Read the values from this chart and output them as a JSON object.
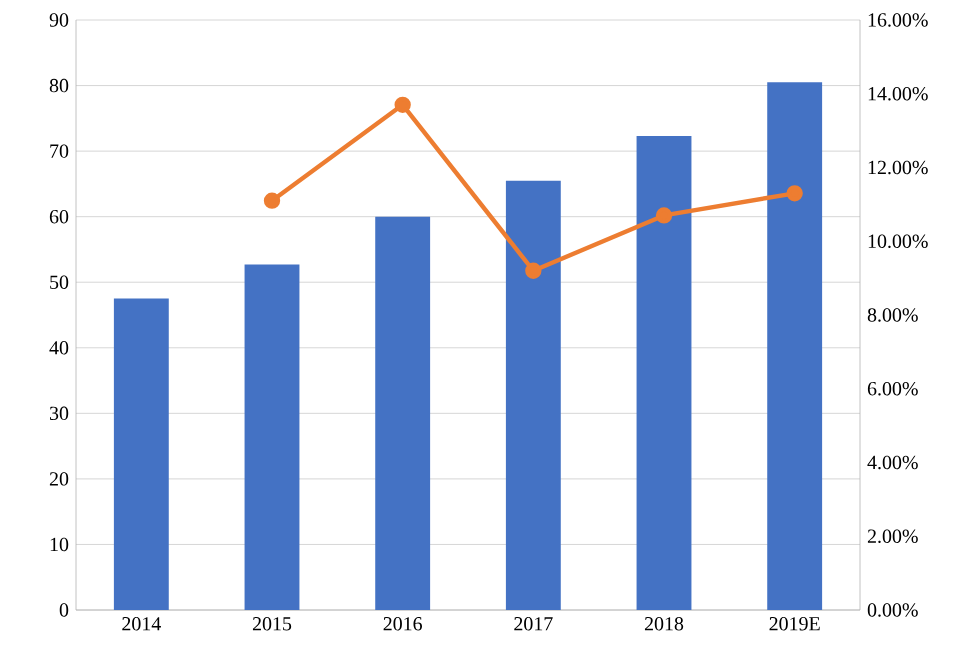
{
  "chart_data": {
    "type": "bar",
    "categories": [
      "2014",
      "2015",
      "2016",
      "2017",
      "2018",
      "2019E"
    ],
    "series": [
      {
        "color": "#4472c4",
        "values": [
          47.5,
          52.7,
          60,
          65.5,
          72.3,
          80.5
        ]
      },
      {
        "type": "line",
        "axis": "y2",
        "color": "#ed7d31",
        "marker": "circle",
        "values": [
          null,
          11.1,
          13.7,
          9.2,
          10.7,
          11.3
        ]
      }
    ],
    "ylim": [
      0,
      90
    ],
    "yticks": [
      0,
      10,
      20,
      30,
      40,
      50,
      60,
      70,
      80,
      90
    ],
    "y2lim": [
      0,
      16
    ],
    "y2ticks": [
      {
        "value": 0,
        "label": "0.00%"
      },
      {
        "value": 2,
        "label": "2.00%"
      },
      {
        "value": 4,
        "label": "4.00%"
      },
      {
        "value": 6,
        "label": "6.00%"
      },
      {
        "value": 8,
        "label": "8.00%"
      },
      {
        "value": 10,
        "label": "10.00%"
      },
      {
        "value": 12,
        "label": "12.00%"
      },
      {
        "value": 14,
        "label": "14.00%"
      },
      {
        "value": 16,
        "label": "16.00%"
      }
    ],
    "grid": "y",
    "legend": false
  }
}
